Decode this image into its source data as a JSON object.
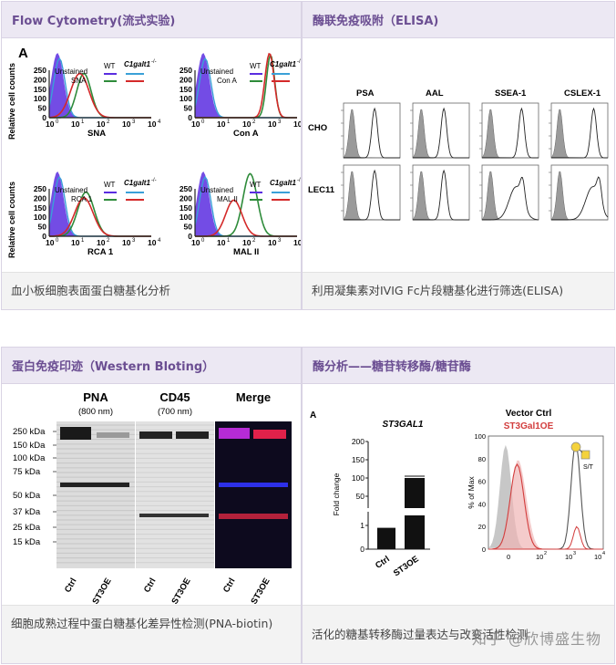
{
  "cells": [
    {
      "title": "Flow Cytometry(流式实验)",
      "caption": "血小板细胞表面蛋白糖基化分析"
    },
    {
      "title": "酶联免疫吸附（ELISA)",
      "caption": "利用凝集素对IVIG Fc片段糖基化进行筛选(ELISA)"
    },
    {
      "title": "蛋白免疫印迹（Western Bloting）",
      "caption": "细胞成熟过程中蛋白糖基化差异性检测(PNA-biotin)"
    },
    {
      "title": "酶分析——糖苷转移酶/糖苷酶",
      "caption": "活化的糖基转移酶过量表达与改变活性检测"
    }
  ],
  "flow": {
    "panel_letter": "A",
    "panels": [
      {
        "lectin": "SNA",
        "xlabel": "SNA",
        "legend_unstained": "Unstained",
        "legend_wt": "WT",
        "legend_ko": "C1galt1",
        "ko_sup": "-/-"
      },
      {
        "lectin": "Con A",
        "xlabel": "Con A",
        "legend_unstained": "Unstained",
        "legend_wt": "WT",
        "legend_ko": "C1galt1",
        "ko_sup": "-/-"
      },
      {
        "lectin": "RCA 1",
        "xlabel": "RCA 1",
        "legend_unstained": "Unstained",
        "legend_wt": "WT",
        "legend_ko": "C1galt1",
        "ko_sup": "-/-"
      },
      {
        "lectin": "MAL II",
        "xlabel": "MAL II",
        "legend_unstained": "Unstained",
        "legend_wt": "WT",
        "legend_ko": "C1galt1",
        "ko_sup": "-/-"
      }
    ],
    "ylabel": "Relative cell counts",
    "yticks": [
      "250",
      "200",
      "150",
      "100",
      "50",
      "0"
    ],
    "xticks": [
      "10",
      "10",
      "10",
      "10",
      "10"
    ],
    "xexps": [
      "0",
      "1",
      "2",
      "3",
      "4"
    ],
    "colors": {
      "unstained": "#5a2de0",
      "wt": "#2e8b3a",
      "ko": "#d42a2a",
      "ko_line": "#3aa0d8"
    }
  },
  "elisa": {
    "cols": [
      "PSA",
      "AAL",
      "SSEA-1",
      "CSLEX-1"
    ],
    "rows": [
      "CHO",
      "LEC11"
    ]
  },
  "western": {
    "markers": [
      "250 kDa",
      "150 kDa",
      "100 kDa",
      "75 kDa",
      "50 kDa",
      "37 kDa",
      "25 kDa",
      "15 kDa"
    ],
    "panels": [
      {
        "name": "PNA",
        "sub": "(800 nm)"
      },
      {
        "name": "CD45",
        "sub": "(700 nm)"
      },
      {
        "name": "Merge",
        "sub": ""
      }
    ],
    "lanes": [
      "Ctrl",
      "ST3OE"
    ]
  },
  "enzyme": {
    "panel_letter": "A",
    "bar_title": "ST3GAL1",
    "bar_ylabel": "Fold change",
    "bar_yticks": [
      "200",
      "150",
      "100",
      "50",
      "1",
      "0"
    ],
    "bar_categories": [
      "Ctrl",
      "ST3OE"
    ],
    "legend_ctrl": "Vector Ctrl",
    "legend_oe": "ST3Gal1OE",
    "hist_ylabel": "% of Max",
    "hist_yticks": [
      "100",
      "80",
      "60",
      "40",
      "20",
      "0"
    ],
    "hist_xticks": [
      "0",
      "10",
      "10",
      "10"
    ],
    "hist_xexps": [
      "",
      "2",
      "3",
      "4"
    ],
    "glycan_label": "S/T",
    "chart_data": {
      "type": "bar",
      "title": "ST3GAL1",
      "categories": [
        "Ctrl",
        "ST3OE"
      ],
      "values": [
        1,
        175
      ],
      "ylabel": "Fold change"
    }
  },
  "watermark": "知乎 @欣博盛生物"
}
